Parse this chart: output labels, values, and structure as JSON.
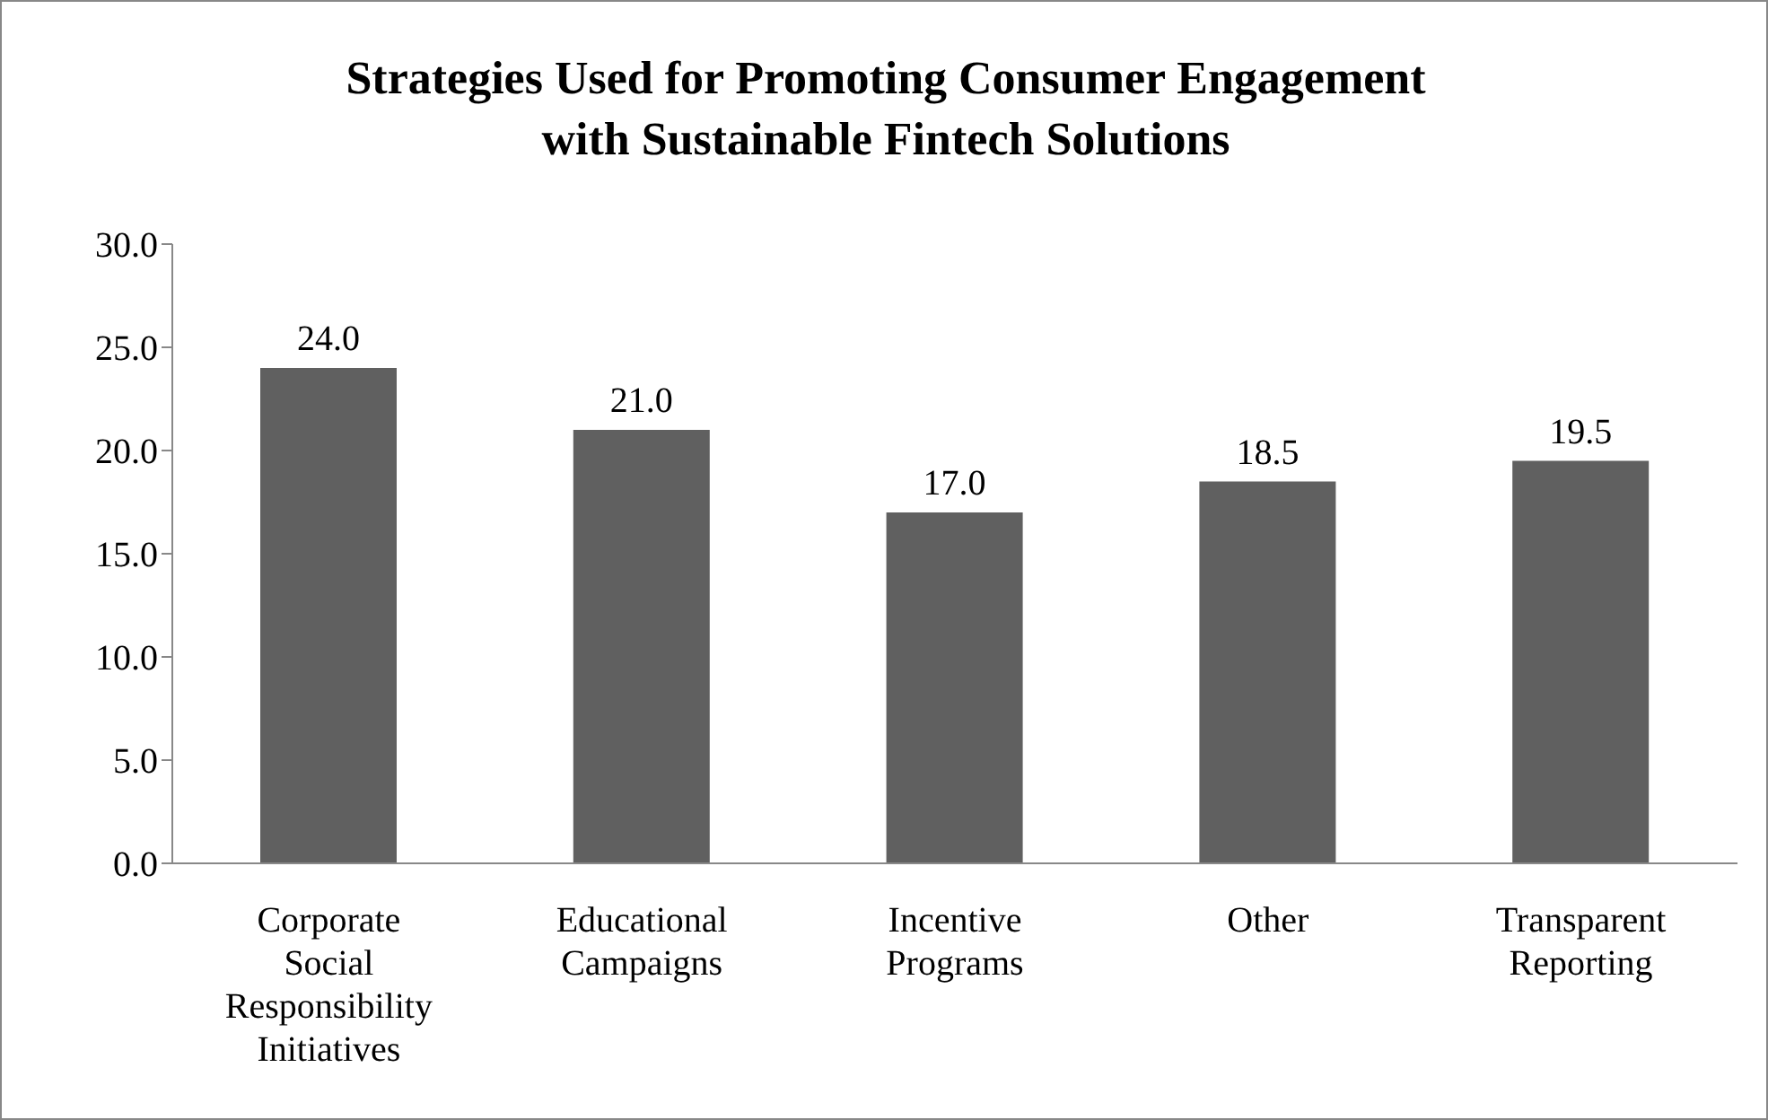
{
  "chart_data": {
    "type": "bar",
    "title": "Strategies Used for Promoting Consumer Engagement with Sustainable Fintech Solutions",
    "categories": [
      "Corporate Social Responsibility Initiatives",
      "Educational Campaigns",
      "Incentive Programs",
      "Other",
      "Transparent Reporting"
    ],
    "values": [
      24.0,
      21.0,
      17.0,
      18.5,
      19.5
    ],
    "value_labels": [
      "24.0",
      "21.0",
      "17.0",
      "18.5",
      "19.5"
    ],
    "color": "#606060",
    "ylim": [
      0,
      30
    ],
    "yticks": [
      {
        "value": 0,
        "label": "0.0"
      },
      {
        "value": 5,
        "label": "5.0"
      },
      {
        "value": 10,
        "label": "10.0"
      },
      {
        "value": 15,
        "label": "15.0"
      },
      {
        "value": 20,
        "label": "20.0"
      },
      {
        "value": 25,
        "label": "25.0"
      },
      {
        "value": 30,
        "label": "30.0"
      }
    ],
    "grid": false,
    "legend": false
  }
}
